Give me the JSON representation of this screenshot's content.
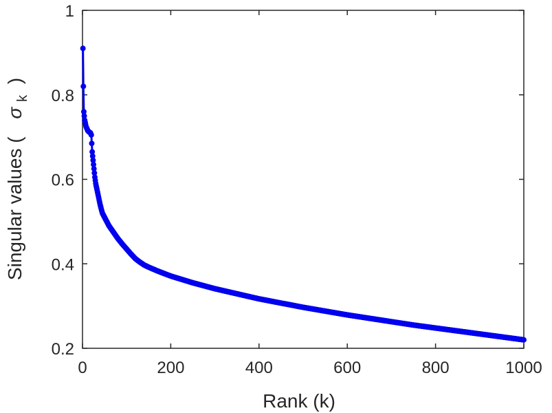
{
  "chart_data": {
    "type": "line",
    "title": "",
    "xlabel": "Rank (k)",
    "ylabel_prefix": "Singular values (",
    "ylabel_symbol": "σ",
    "ylabel_subscript": "k",
    "ylabel_suffix": ")",
    "xlim": [
      0,
      1000
    ],
    "ylim": [
      0.2,
      1
    ],
    "xticks": [
      0,
      200,
      400,
      600,
      800,
      1000
    ],
    "xtick_labels": [
      "0",
      "200",
      "400",
      "600",
      "800",
      "1000"
    ],
    "yticks": [
      0.2,
      0.4,
      0.6,
      0.8,
      1
    ],
    "ytick_labels": [
      "0.2",
      "0.4",
      "0.6",
      "0.8",
      "1"
    ],
    "grid": false,
    "markers": true,
    "color": "#0000ee",
    "series": [
      {
        "x": [
          1,
          2,
          3,
          4,
          5,
          6,
          8,
          10,
          12,
          15,
          18,
          20,
          22,
          25,
          28,
          30,
          35,
          40,
          45,
          50,
          55,
          60,
          70,
          80,
          90,
          100,
          110,
          120,
          130,
          140,
          150,
          170,
          200,
          250,
          300,
          350,
          400,
          450,
          500,
          550,
          600,
          650,
          700,
          750,
          800,
          850,
          900,
          950,
          1000
        ],
        "y": [
          0.91,
          0.82,
          0.76,
          0.75,
          0.74,
          0.735,
          0.725,
          0.72,
          0.715,
          0.712,
          0.71,
          0.705,
          0.665,
          0.635,
          0.605,
          0.59,
          0.565,
          0.54,
          0.52,
          0.51,
          0.5,
          0.49,
          0.475,
          0.46,
          0.447,
          0.435,
          0.423,
          0.412,
          0.404,
          0.397,
          0.392,
          0.383,
          0.371,
          0.355,
          0.341,
          0.329,
          0.317,
          0.307,
          0.297,
          0.288,
          0.279,
          0.271,
          0.263,
          0.255,
          0.248,
          0.241,
          0.234,
          0.227,
          0.22
        ]
      }
    ]
  }
}
